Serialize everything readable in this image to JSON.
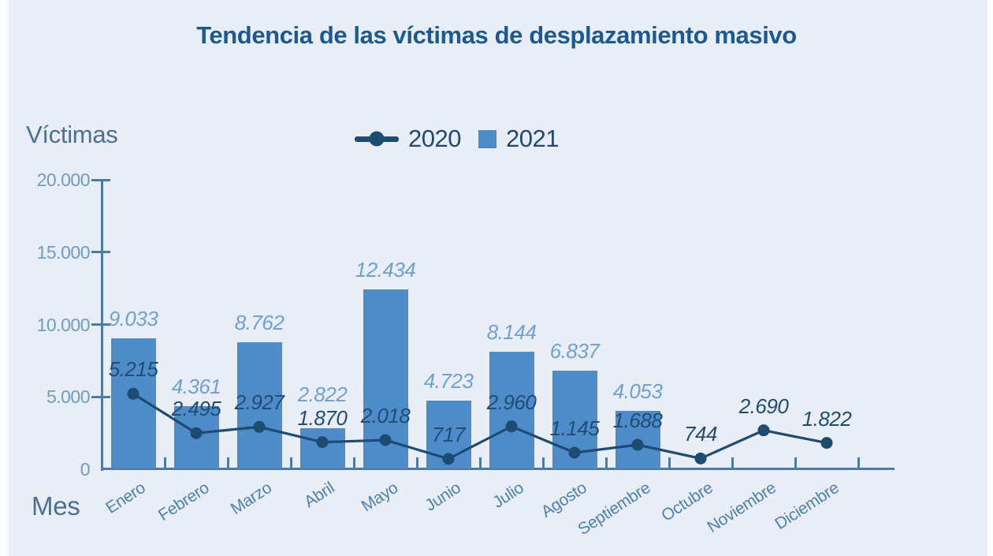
{
  "header": {
    "title": "Tendencia de las víctimas de desplazamiento masivo"
  },
  "axis_labels": {
    "y": "Víctimas",
    "x": "Mes"
  },
  "legend": {
    "position": "top-center",
    "items": [
      {
        "label": "2020",
        "marker": "line-dot-icon"
      },
      {
        "label": "2021",
        "marker": "square-icon"
      }
    ]
  },
  "colors": {
    "background": "#e9edf6",
    "edge_strip": "#fbfdff",
    "title": "#1a5a90",
    "axis_title": "#4b7096",
    "legend_text": "#1d4a73",
    "axis_line": "#4f7aa6",
    "ytick_label": "#6d9cc8",
    "month_label": "#4e82b4",
    "bar": "#4d8cc9",
    "bar_value_label": "#6fa0d6",
    "line": "#1d4b72",
    "line_value_label": "#204d73"
  },
  "chart_data": {
    "type": "bar",
    "title": "Tendencia de las víctimas de desplazamiento masivo",
    "xlabel": "Mes",
    "ylabel": "Víctimas",
    "categories": [
      "Enero",
      "Febrero",
      "Marzo",
      "Abril",
      "Mayo",
      "Junio",
      "Julio",
      "Agosto",
      "Septiembre",
      "Octubre",
      "Noviembre",
      "Diciembre"
    ],
    "series": [
      {
        "name": "2020",
        "kind": "line",
        "values": [
          5215,
          2495,
          2927,
          1870,
          2018,
          717,
          2960,
          1145,
          1688,
          744,
          2690,
          1822
        ],
        "value_labels": [
          "5.215",
          "2.495",
          "2.927",
          "1.870",
          "2.018",
          "717",
          "2.960",
          "1.145",
          "1.688",
          "744",
          "2.690",
          "1.822"
        ]
      },
      {
        "name": "2021",
        "kind": "bar",
        "values": [
          9033,
          4361,
          8762,
          2822,
          12434,
          4723,
          8144,
          6837,
          4053,
          null,
          null,
          null
        ],
        "value_labels": [
          "9.033",
          "4.361",
          "8.762",
          "2.822",
          "12.434",
          "4.723",
          "8.144",
          "6.837",
          "4.053",
          "",
          "",
          ""
        ]
      }
    ],
    "ylim": [
      0,
      20000
    ],
    "yticks": {
      "values": [
        0,
        5000,
        10000,
        15000,
        20000
      ],
      "labels": [
        "0",
        "5.000",
        "10.000",
        "15.000",
        "20.000"
      ]
    },
    "grid": false,
    "legend_position": "top-center",
    "value_labels_shown": true,
    "value_label_style": "italic"
  }
}
